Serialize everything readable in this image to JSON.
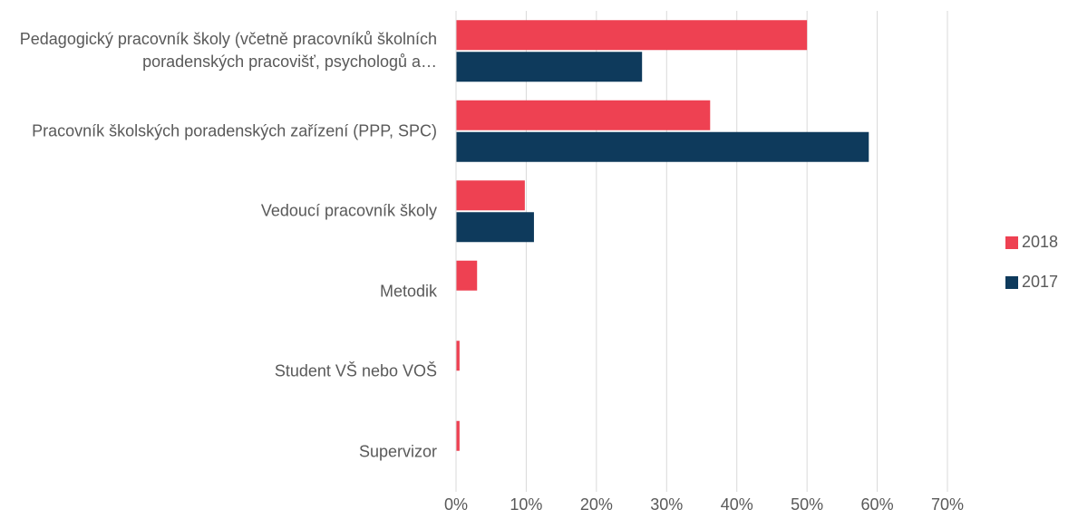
{
  "chart_data": {
    "type": "bar",
    "orientation": "horizontal",
    "categories": [
      "Pedagogický pracovník školy (včetně pracovníků školních poradenských pracovišť, psychologů a…",
      "Pracovník školských poradenských zařízení (PPP, SPC)",
      "Vedoucí pracovník školy",
      "Metodik",
      "Student VŠ nebo VOŠ",
      "Supervizor"
    ],
    "series": [
      {
        "name": "2018",
        "color": "#ee4152",
        "values": [
          50.0,
          36.2,
          9.8,
          3.0,
          0.5,
          0.5
        ]
      },
      {
        "name": "2017",
        "color": "#0e3a5c",
        "values": [
          26.5,
          58.8,
          11.1,
          null,
          null,
          null
        ]
      }
    ],
    "xlim": [
      0,
      70
    ],
    "xticks": [
      {
        "value": 0,
        "label": "0%"
      },
      {
        "value": 10,
        "label": "10%"
      },
      {
        "value": 20,
        "label": "20%"
      },
      {
        "value": 30,
        "label": "30%"
      },
      {
        "value": 40,
        "label": "40%"
      },
      {
        "value": 50,
        "label": "50%"
      },
      {
        "value": 60,
        "label": "60%"
      },
      {
        "value": 70,
        "label": "70%"
      }
    ],
    "grid": true,
    "legend": "right"
  }
}
